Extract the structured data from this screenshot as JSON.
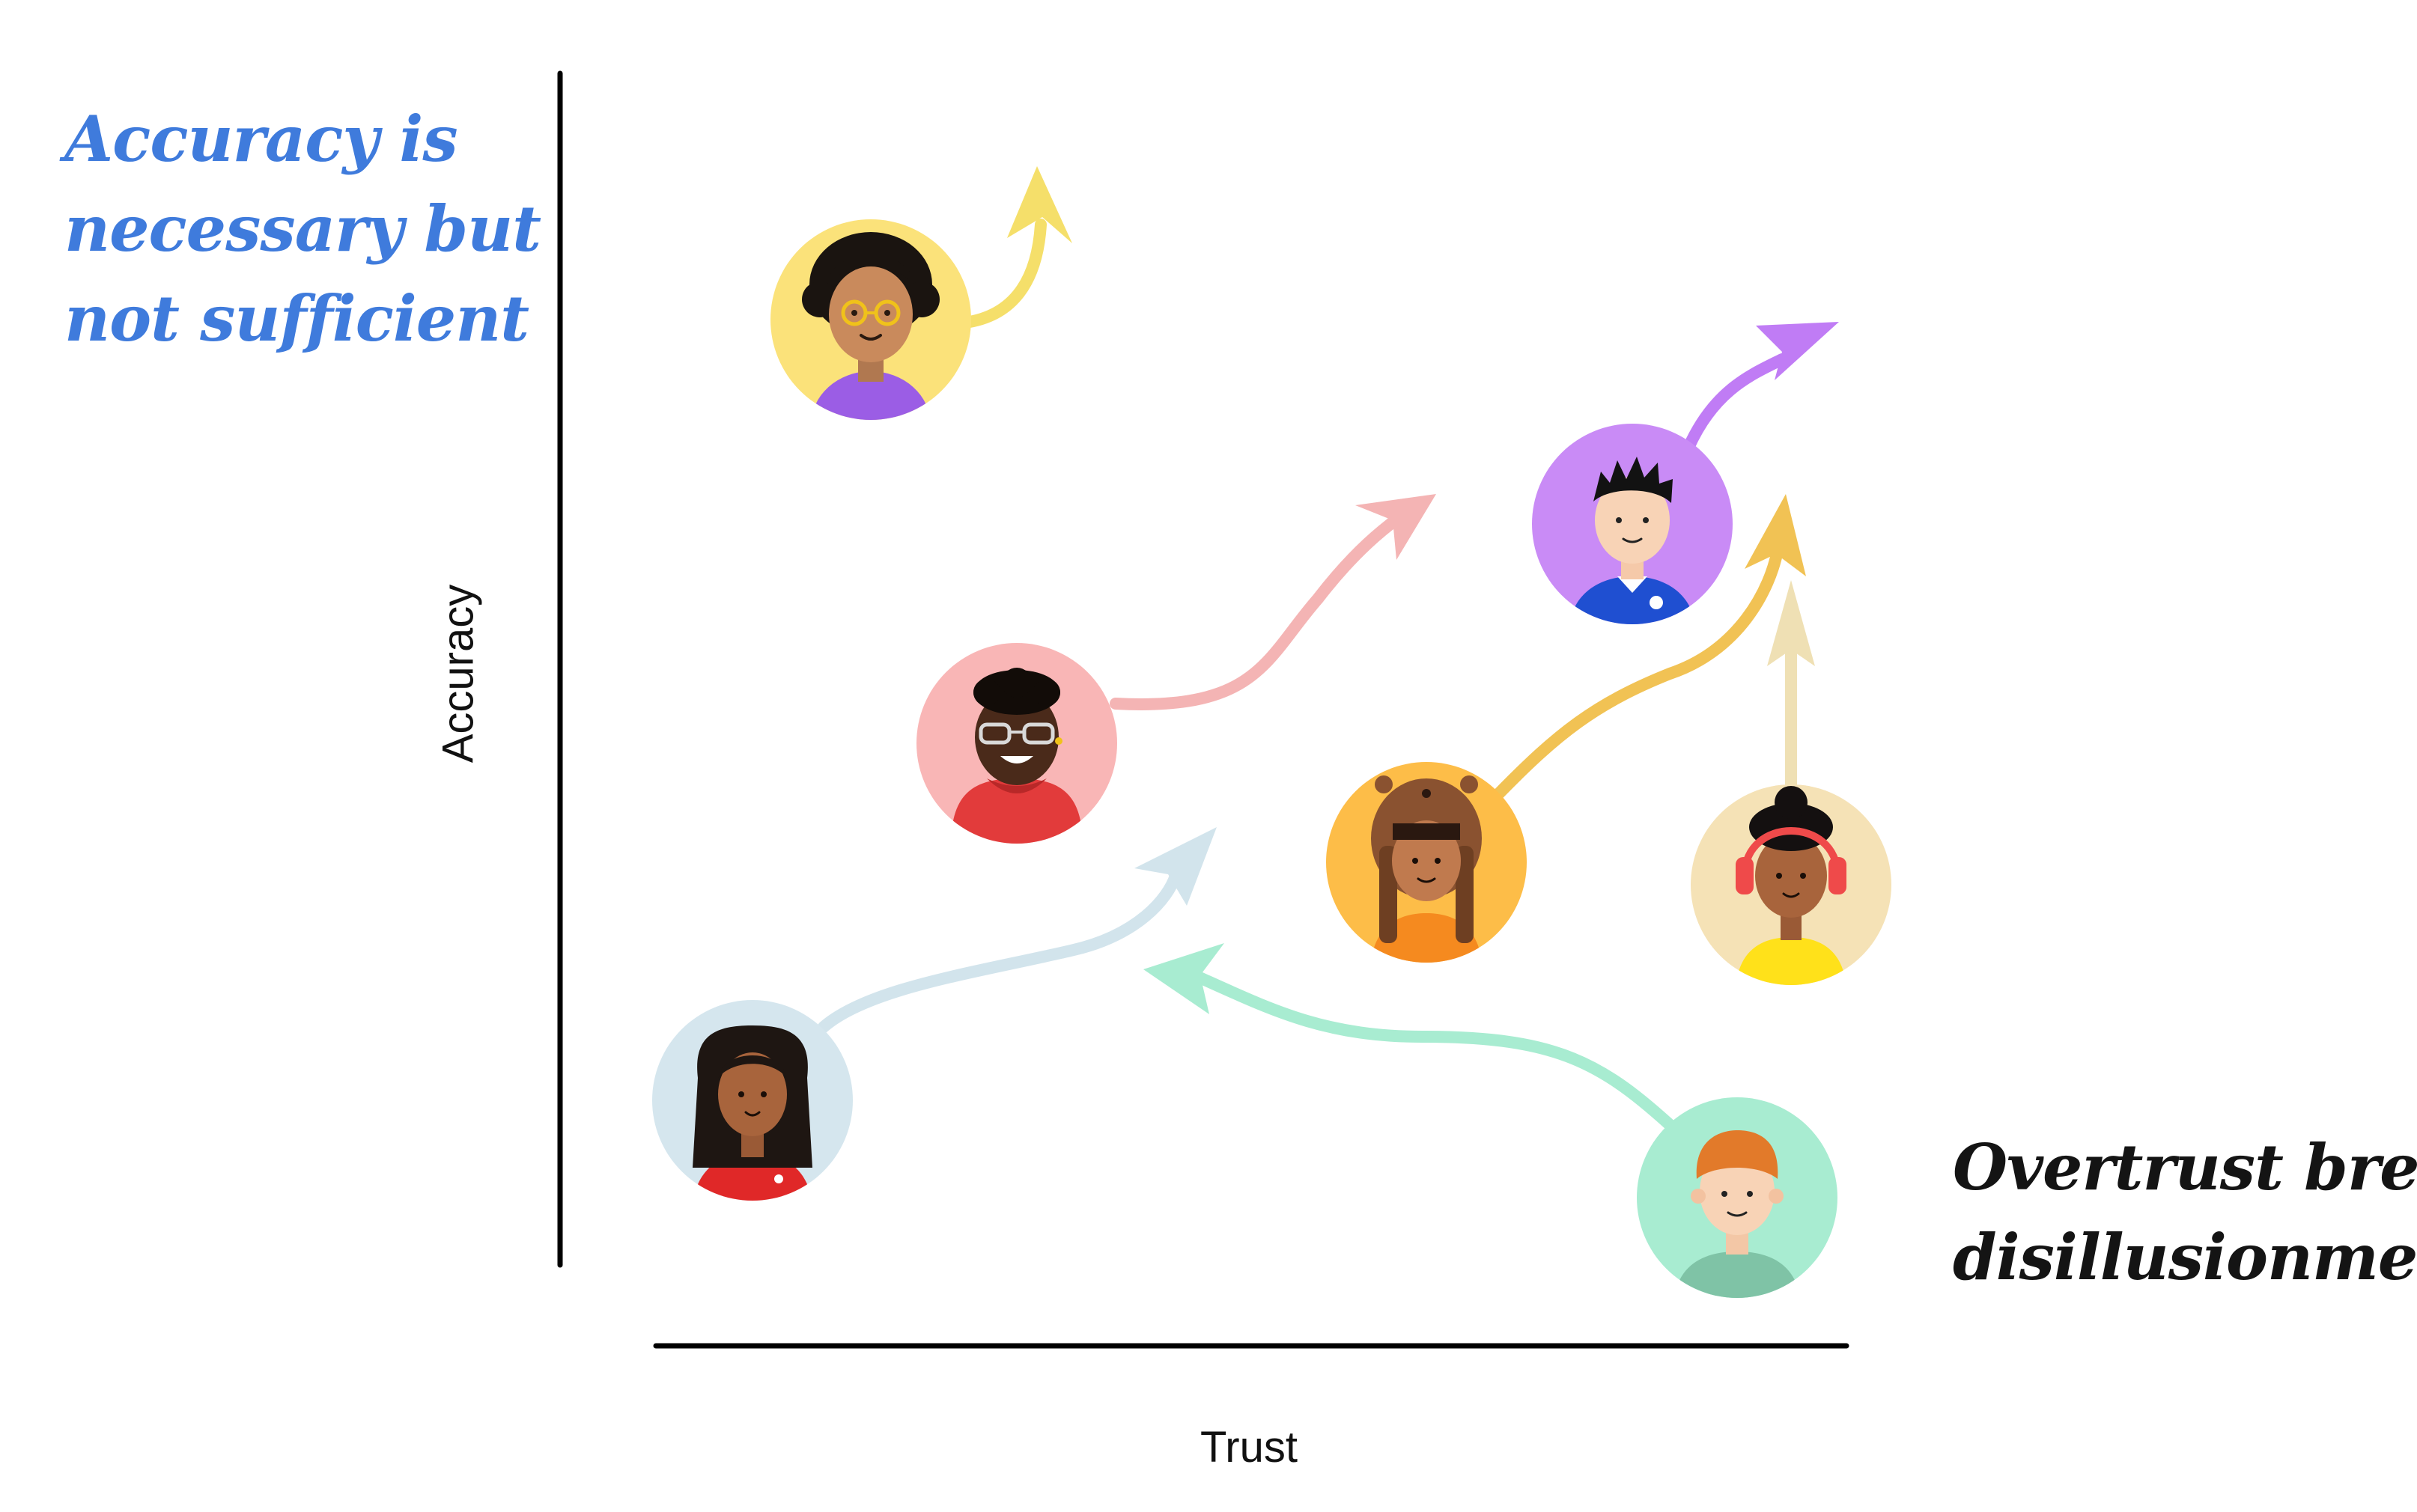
{
  "axes": {
    "x_label": "Trust",
    "y_label": "Accuracy"
  },
  "annotations": {
    "top_left": [
      "Accuracy is",
      "necessary but",
      "not sufficient"
    ],
    "top_left_color": "#3f7bdc",
    "bottom_right": [
      "Overtrust breeds",
      "disillusionment"
    ],
    "bottom_right_color": "#141414"
  },
  "people": [
    {
      "name": "person-curly-hair-glasses",
      "bg": "#fbe27a",
      "arrow": "#f5df6a"
    },
    {
      "name": "person-red-hoodie",
      "bg": "#f9b6b6",
      "arrow": "#f4b4b4"
    },
    {
      "name": "person-spiky-hair",
      "bg": "#c98bf6",
      "arrow": "#c07cf5"
    },
    {
      "name": "person-beaver-hat",
      "bg": "#fdbd48",
      "arrow": "#f1c254"
    },
    {
      "name": "person-headphones",
      "bg": "#f5e2b6",
      "arrow": "#efe0b4"
    },
    {
      "name": "person-long-hair",
      "bg": "#d5e6ee",
      "arrow": "#d2e4ec"
    },
    {
      "name": "person-ginger-hair",
      "bg": "#a8ecd1",
      "arrow": "#a8ecd1"
    }
  ]
}
